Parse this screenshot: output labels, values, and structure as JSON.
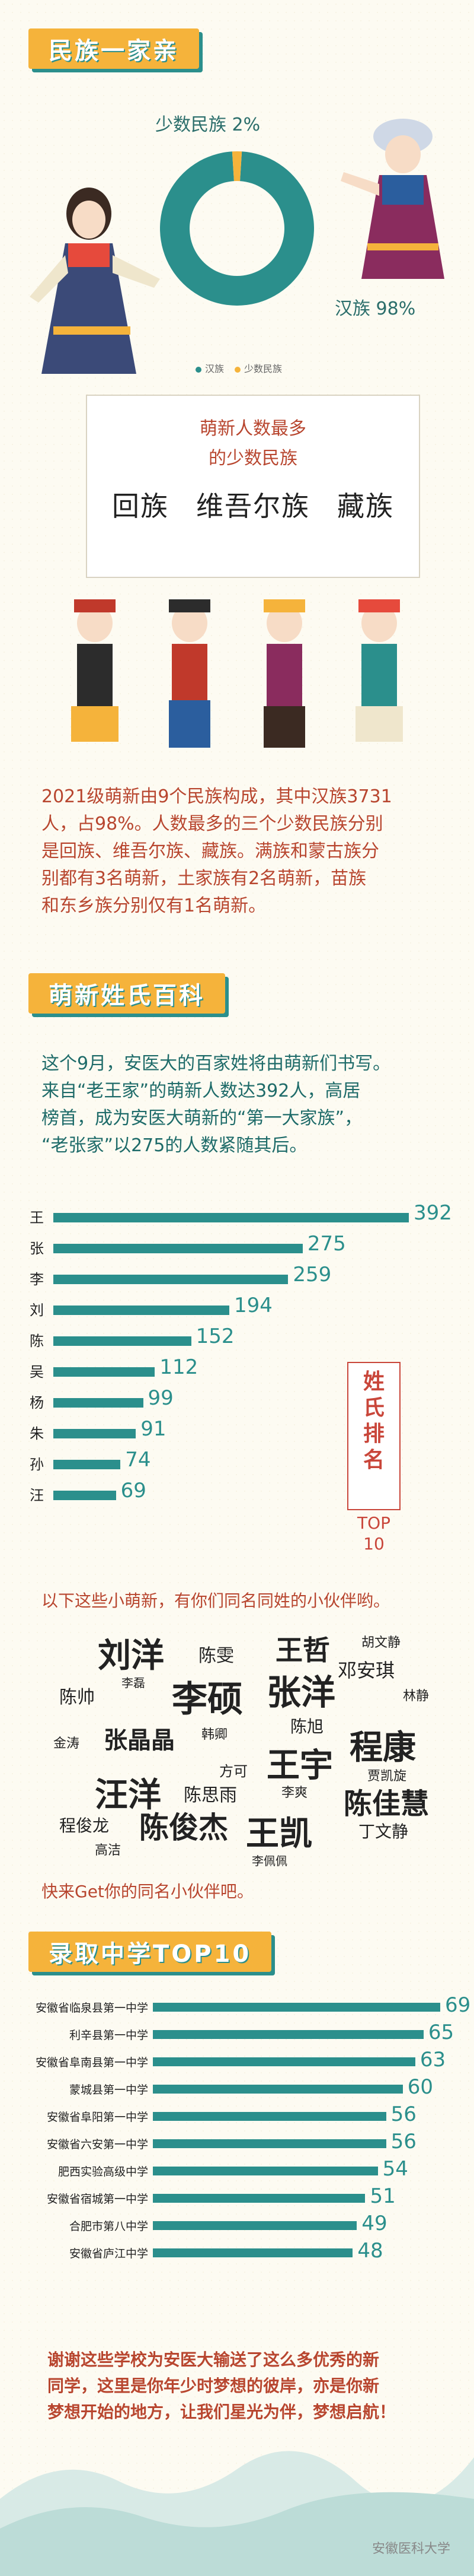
{
  "sections": {
    "ethnic_title": "民族一家亲",
    "surname_title": "萌新姓氏百科",
    "school_title": "录取中学TOP10"
  },
  "pie": {
    "minority_label": "少数民族 2%",
    "han_label": "汉族 98%",
    "legend": [
      "汉族",
      "少数民族"
    ],
    "colors": {
      "han": "#2b8f8c",
      "minority": "#f5b33b"
    }
  },
  "pie_chart_data": {
    "type": "pie",
    "labels": [
      "汉族",
      "少数民族"
    ],
    "values": [
      98,
      2
    ]
  },
  "callout": {
    "line1": "萌新人数最多",
    "line2": "的少数民族",
    "nations": [
      "回族",
      "维吾尔族",
      "藏族"
    ]
  },
  "ethnic_paragraph": [
    "2021级萌新由9个民族构成，其中汉族3731",
    "人，占98%。人数最多的三个少数民族分别",
    "是回族、维吾尔族、藏族。满族和蒙古族分",
    "别都有3名萌新，土家族有2名萌新，苗族",
    "和东乡族分别仅有1名萌新。"
  ],
  "surname_paragraph": [
    "这个9月，安医大的百家姓将由萌新们书写。",
    "来自“老王家”的萌新人数达392人，高居",
    "榜首，成为安医大萌新的“第一大家族”，",
    "“老张家”以275的人数紧随其后。"
  ],
  "rank_box": {
    "lines": [
      "姓",
      "氏",
      "排",
      "名"
    ],
    "top": "TOP",
    "ten": "10"
  },
  "chart_data": [
    {
      "type": "bar",
      "orientation": "horizontal",
      "categories": [
        "王",
        "张",
        "李",
        "刘",
        "陈",
        "吴",
        "杨",
        "朱",
        "孙",
        "汪"
      ],
      "values": [
        392,
        275,
        259,
        194,
        152,
        112,
        99,
        91,
        74,
        69
      ]
    },
    {
      "type": "bar",
      "orientation": "horizontal",
      "categories": [
        "安徽省临泉县第一中学",
        "利辛县第一中学",
        "安徽省阜南县第一中学",
        "蒙城县第一中学",
        "安徽省阜阳第一中学",
        "安徽省六安第一中学",
        "肥西实验高级中学",
        "安徽省宿城第一中学",
        "合肥市第八中学",
        "安徽省庐江中学"
      ],
      "values": [
        69,
        65,
        63,
        60,
        56,
        56,
        54,
        51,
        49,
        48
      ]
    }
  ],
  "names_intro": "以下这些小萌新，有你们同名同姓的小伙伴哟。",
  "names": [
    "刘洋",
    "陈雯",
    "王哲",
    "胡文静",
    "邓安琪",
    "陈帅",
    "李磊",
    "李硕",
    "张洋",
    "林静",
    "金涛",
    "张晶晶",
    "韩卿",
    "陈旭",
    "方可",
    "王宇",
    "程康",
    "贾凯旋",
    "汪洋",
    "陈思雨",
    "李爽",
    "陈佳慧",
    "程俊龙",
    "陈俊杰",
    "王凯",
    "丁文静",
    "高洁",
    "李佩佩"
  ],
  "names_outro": "快来Get你的同名小伙伴吧。",
  "closing": [
    "谢谢这些学校为安医大输送了这么多优秀的新",
    "同学，这里是你年少时梦想的彼岸，亦是你新",
    "梦想开始的地方，让我们星光为伴，梦想启航！"
  ],
  "watermark": "安徽医科大学"
}
